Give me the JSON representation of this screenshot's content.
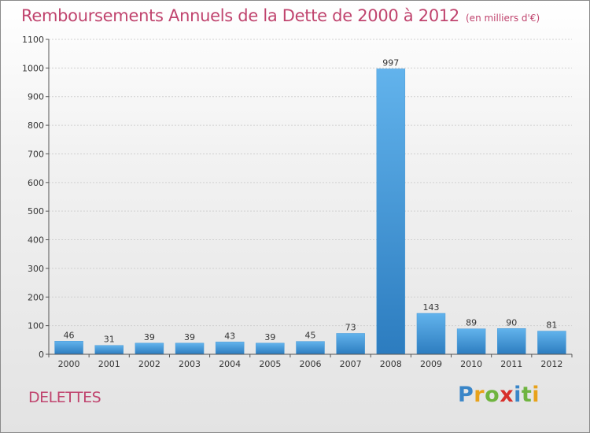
{
  "header": {
    "title": "Remboursements Annuels de la Dette de 2000 à 2012",
    "unit": "(en milliers d'€)"
  },
  "footer": {
    "commune": "DELETTES",
    "logo": {
      "letters": [
        "P",
        "r",
        "o",
        "x",
        "i",
        "t",
        "i"
      ],
      "colors": [
        "#3a86c8",
        "#e8a21a",
        "#6fb43f",
        "#d7302b",
        "#3a86c8",
        "#6fb43f",
        "#e8a21a"
      ]
    }
  },
  "colors": {
    "title": "#c0446e",
    "bar_light": "#5fb0ea",
    "bar_dark": "#2e7fc2",
    "gridline": "#d0d0d0",
    "axis": "#555555"
  },
  "chart_data": {
    "type": "bar",
    "title": "Remboursements Annuels de la Dette de 2000 à 2012",
    "subtitle": "(en milliers d'€)",
    "categories": [
      "2000",
      "2001",
      "2002",
      "2003",
      "2004",
      "2005",
      "2006",
      "2007",
      "2008",
      "2009",
      "2010",
      "2011",
      "2012"
    ],
    "values": [
      46,
      31,
      39,
      39,
      43,
      39,
      45,
      73,
      997,
      143,
      89,
      90,
      81
    ],
    "xlabel": "",
    "ylabel": "",
    "ylim": [
      0,
      1100
    ],
    "yticks": [
      0,
      100,
      200,
      300,
      400,
      500,
      600,
      700,
      800,
      900,
      1000,
      1100
    ],
    "grid": true,
    "legend": "none"
  }
}
